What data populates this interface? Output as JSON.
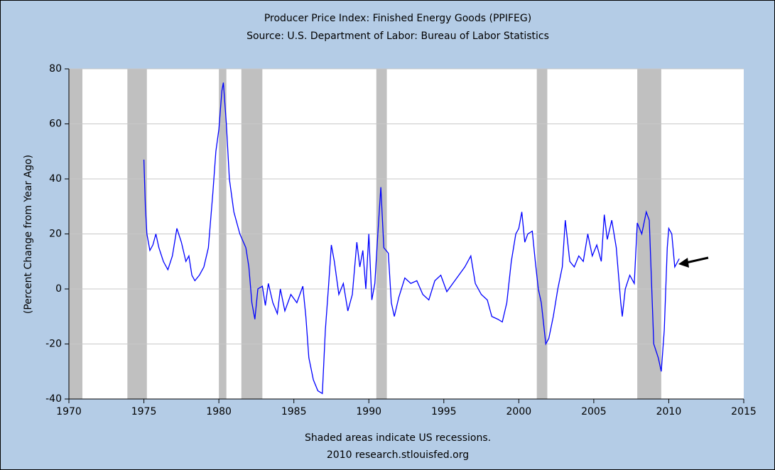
{
  "chart_data": {
    "type": "line",
    "title": "Producer Price Index: Finished Energy Goods (PPIFEG)",
    "subtitle": "Source: U.S. Department of Labor: Bureau of Labor Statistics",
    "y_label": "(Percent Change from Year Ago)",
    "annotations": [
      "Shaded areas indicate US recessions.",
      "2010 research.stlouisfed.org"
    ],
    "xlim": [
      1970,
      2015
    ],
    "xticks": [
      1970,
      1975,
      1980,
      1985,
      1990,
      1995,
      2000,
      2005,
      2010,
      2015
    ],
    "ylim": [
      -40,
      80
    ],
    "yticks": [
      -40,
      -20,
      0,
      20,
      40,
      60,
      80
    ],
    "grid": true,
    "recession_color": "#c0c0c0",
    "recessions": [
      [
        1970.0,
        1970.9
      ],
      [
        1973.9,
        1975.2
      ],
      [
        1980.0,
        1980.5
      ],
      [
        1981.5,
        1982.9
      ],
      [
        1990.5,
        1991.2
      ],
      [
        2001.2,
        2001.9
      ],
      [
        2007.9,
        2009.5
      ]
    ],
    "series": [
      {
        "color": "#0000ff",
        "x": [
          1975.0,
          1975.1,
          1975.2,
          1975.4,
          1975.6,
          1975.8,
          1976.0,
          1976.3,
          1976.6,
          1976.9,
          1977.2,
          1977.5,
          1977.8,
          1978.0,
          1978.2,
          1978.4,
          1978.7,
          1979.0,
          1979.3,
          1979.6,
          1979.8,
          1980.0,
          1980.2,
          1980.3,
          1980.5,
          1980.7,
          1981.0,
          1981.4,
          1981.8,
          1982.0,
          1982.2,
          1982.4,
          1982.6,
          1982.9,
          1983.1,
          1983.3,
          1983.6,
          1983.9,
          1984.1,
          1984.4,
          1984.8,
          1985.2,
          1985.6,
          1985.8,
          1986.0,
          1986.3,
          1986.6,
          1986.9,
          1987.1,
          1987.3,
          1987.5,
          1987.7,
          1988.0,
          1988.3,
          1988.6,
          1988.9,
          1989.2,
          1989.4,
          1989.6,
          1989.8,
          1990.0,
          1990.2,
          1990.4,
          1990.6,
          1990.8,
          1991.0,
          1991.3,
          1991.5,
          1991.7,
          1992.0,
          1992.4,
          1992.8,
          1993.2,
          1993.6,
          1994.0,
          1994.4,
          1994.8,
          1995.2,
          1995.6,
          1996.0,
          1996.4,
          1996.8,
          1997.1,
          1997.5,
          1997.9,
          1998.2,
          1998.6,
          1998.9,
          1999.2,
          1999.5,
          1999.8,
          2000.0,
          2000.2,
          2000.4,
          2000.6,
          2000.9,
          2001.1,
          2001.3,
          2001.5,
          2001.8,
          2002.0,
          2002.3,
          2002.6,
          2002.9,
          2003.1,
          2003.4,
          2003.7,
          2004.0,
          2004.3,
          2004.6,
          2004.9,
          2005.2,
          2005.5,
          2005.7,
          2005.9,
          2006.2,
          2006.5,
          2006.8,
          2006.9,
          2007.1,
          2007.4,
          2007.7,
          2007.9,
          2008.2,
          2008.5,
          2008.7,
          2008.9,
          2009.0,
          2009.3,
          2009.5,
          2009.7,
          2009.9,
          2010.0,
          2010.2,
          2010.4,
          2010.6,
          2010.7
        ],
        "values": [
          47,
          30,
          20,
          14,
          16,
          20,
          15,
          10,
          7,
          12,
          22,
          17,
          10,
          12,
          5,
          3,
          5,
          8,
          15,
          35,
          50,
          58,
          72,
          75,
          60,
          40,
          28,
          20,
          15,
          8,
          -5,
          -11,
          0,
          1,
          -6,
          2,
          -5,
          -9,
          0,
          -8,
          -2,
          -5,
          1,
          -10,
          -25,
          -33,
          -37,
          -38,
          -15,
          0,
          16,
          10,
          -2,
          2,
          -8,
          -2,
          17,
          8,
          14,
          0,
          20,
          -4,
          2,
          20,
          37,
          15,
          13,
          -5,
          -10,
          -3,
          4,
          2,
          3,
          -2,
          -4,
          3,
          5,
          -1,
          2,
          5,
          8,
          12,
          2,
          -2,
          -4,
          -10,
          -11,
          -12,
          -5,
          10,
          20,
          22,
          28,
          17,
          20,
          21,
          10,
          0,
          -5,
          -20,
          -18,
          -10,
          0,
          8,
          25,
          10,
          8,
          12,
          10,
          20,
          12,
          16,
          10,
          27,
          18,
          25,
          15,
          -5,
          -10,
          0,
          5,
          2,
          24,
          20,
          28,
          25,
          -5,
          -20,
          -25,
          -30,
          -15,
          15,
          22,
          20,
          8,
          10,
          11
        ]
      }
    ]
  }
}
